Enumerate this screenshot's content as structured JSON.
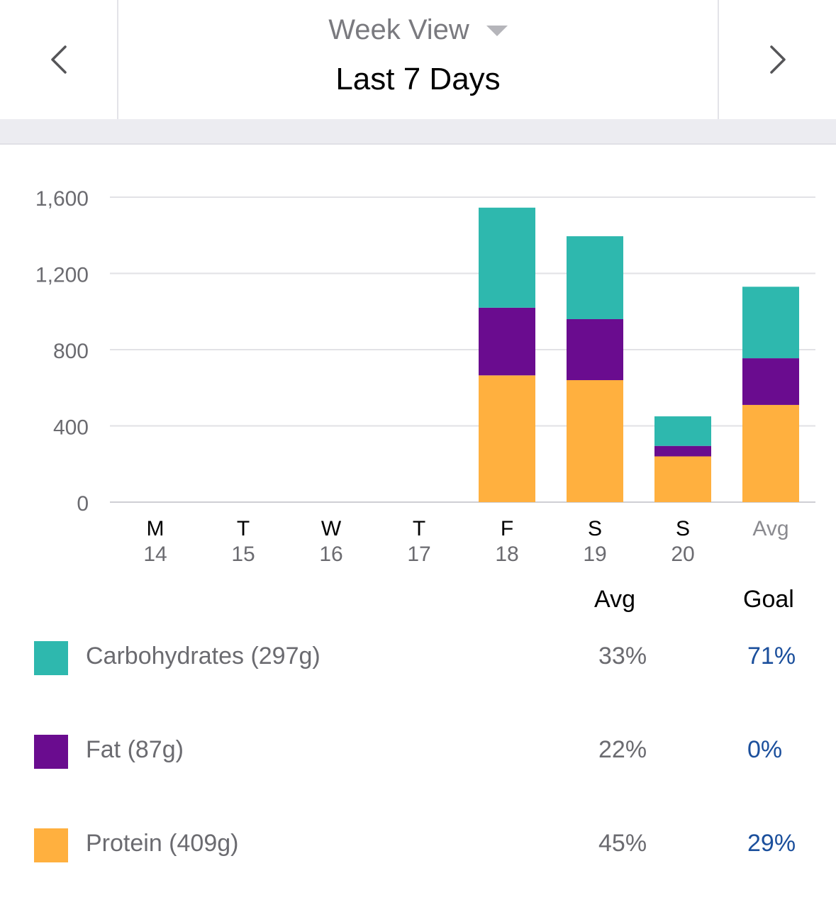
{
  "header": {
    "view_label": "Week View",
    "period_title": "Last 7 Days",
    "prev_icon": "chevron-left-icon",
    "next_icon": "chevron-right-icon",
    "dropdown_icon": "caret-down-icon"
  },
  "chart_data": {
    "type": "bar",
    "stacked": true,
    "categories": [
      {
        "day": "M",
        "date": "14"
      },
      {
        "day": "T",
        "date": "15"
      },
      {
        "day": "W",
        "date": "16"
      },
      {
        "day": "T",
        "date": "17"
      },
      {
        "day": "F",
        "date": "18"
      },
      {
        "day": "S",
        "date": "19"
      },
      {
        "day": "S",
        "date": "20"
      },
      {
        "day": "Avg",
        "date": ""
      }
    ],
    "series": [
      {
        "name": "Protein",
        "color": "#ffb03f",
        "values": [
          0,
          0,
          0,
          0,
          665,
          640,
          240,
          510
        ]
      },
      {
        "name": "Fat",
        "color": "#6a0c8f",
        "values": [
          0,
          0,
          0,
          0,
          355,
          320,
          55,
          245
        ]
      },
      {
        "name": "Carbohydrates",
        "color": "#2eb8ae",
        "values": [
          0,
          0,
          0,
          0,
          525,
          435,
          155,
          375
        ]
      }
    ],
    "yticks": [
      "0",
      "400",
      "800",
      "1,200",
      "1,600"
    ],
    "ytick_values": [
      0,
      400,
      800,
      1200,
      1600
    ],
    "ylim": [
      0,
      1600
    ],
    "grid": true
  },
  "legend": {
    "avg_header": "Avg",
    "goal_header": "Goal",
    "items": [
      {
        "label": "Carbohydrates (297g)",
        "color": "#2eb8ae",
        "avg": "33%",
        "goal": "71%"
      },
      {
        "label": "Fat (87g)",
        "color": "#6a0c8f",
        "avg": "22%",
        "goal": "0%"
      },
      {
        "label": "Protein (409g)",
        "color": "#ffb03f",
        "avg": "45%",
        "goal": "29%"
      }
    ]
  }
}
